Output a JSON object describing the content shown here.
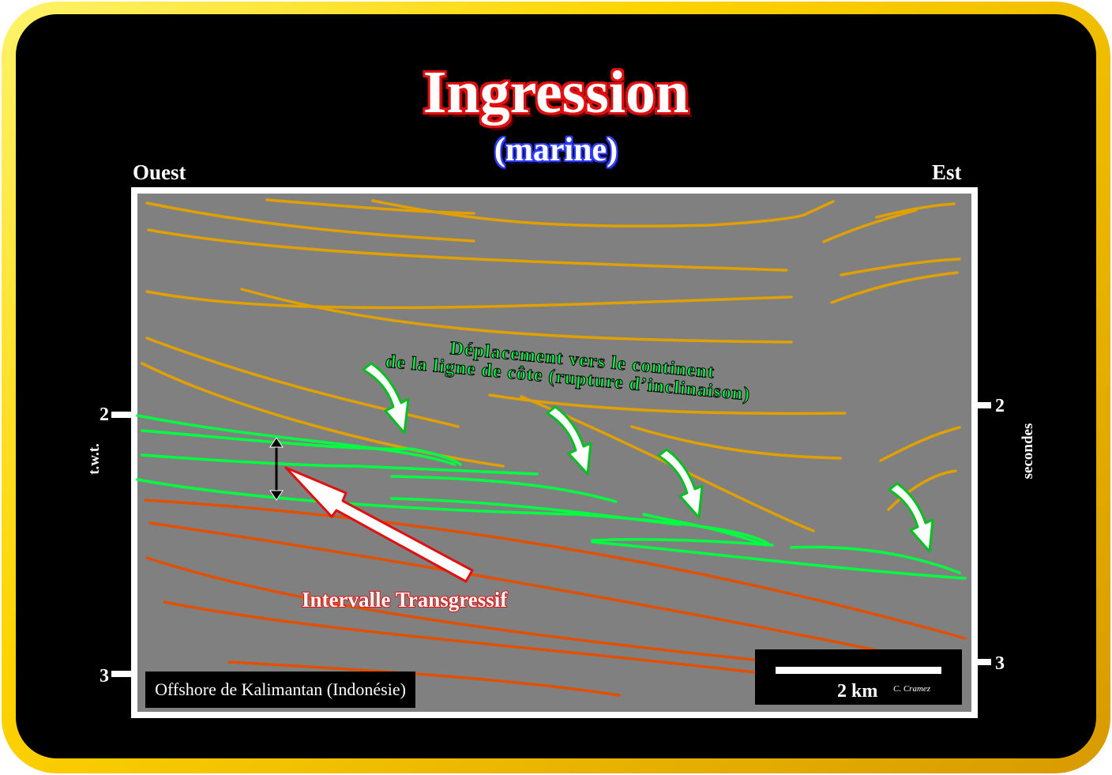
{
  "title": "Ingression",
  "subtitle": "(marine)",
  "west_label": "Ouest",
  "east_label": "Est",
  "left_axis": {
    "label": "t.w.t.",
    "ticks": [
      "2",
      "3"
    ]
  },
  "right_axis": {
    "label": "secondes",
    "ticks": [
      "2",
      "3"
    ]
  },
  "annotations": {
    "shoreline_line1": "Déplacement vers le continent",
    "shoreline_line2": "de la ligne de côte  (rupture  d’inclinaison)",
    "transgressive": "Intervalle Transgressif"
  },
  "location": "Offshore de Kalimantan (Indonésie)",
  "scale": {
    "label": "2 km",
    "credit": "C. Cramez"
  },
  "colors": {
    "frame": "#ffd400",
    "section_bg": "#808080",
    "upper_reflectors": "#e0a000",
    "transgressive_reflectors": "#00ff40",
    "lower_reflectors": "#e05000",
    "title_outline": "#e01010",
    "subtitle_outline": "#2d3cff"
  }
}
